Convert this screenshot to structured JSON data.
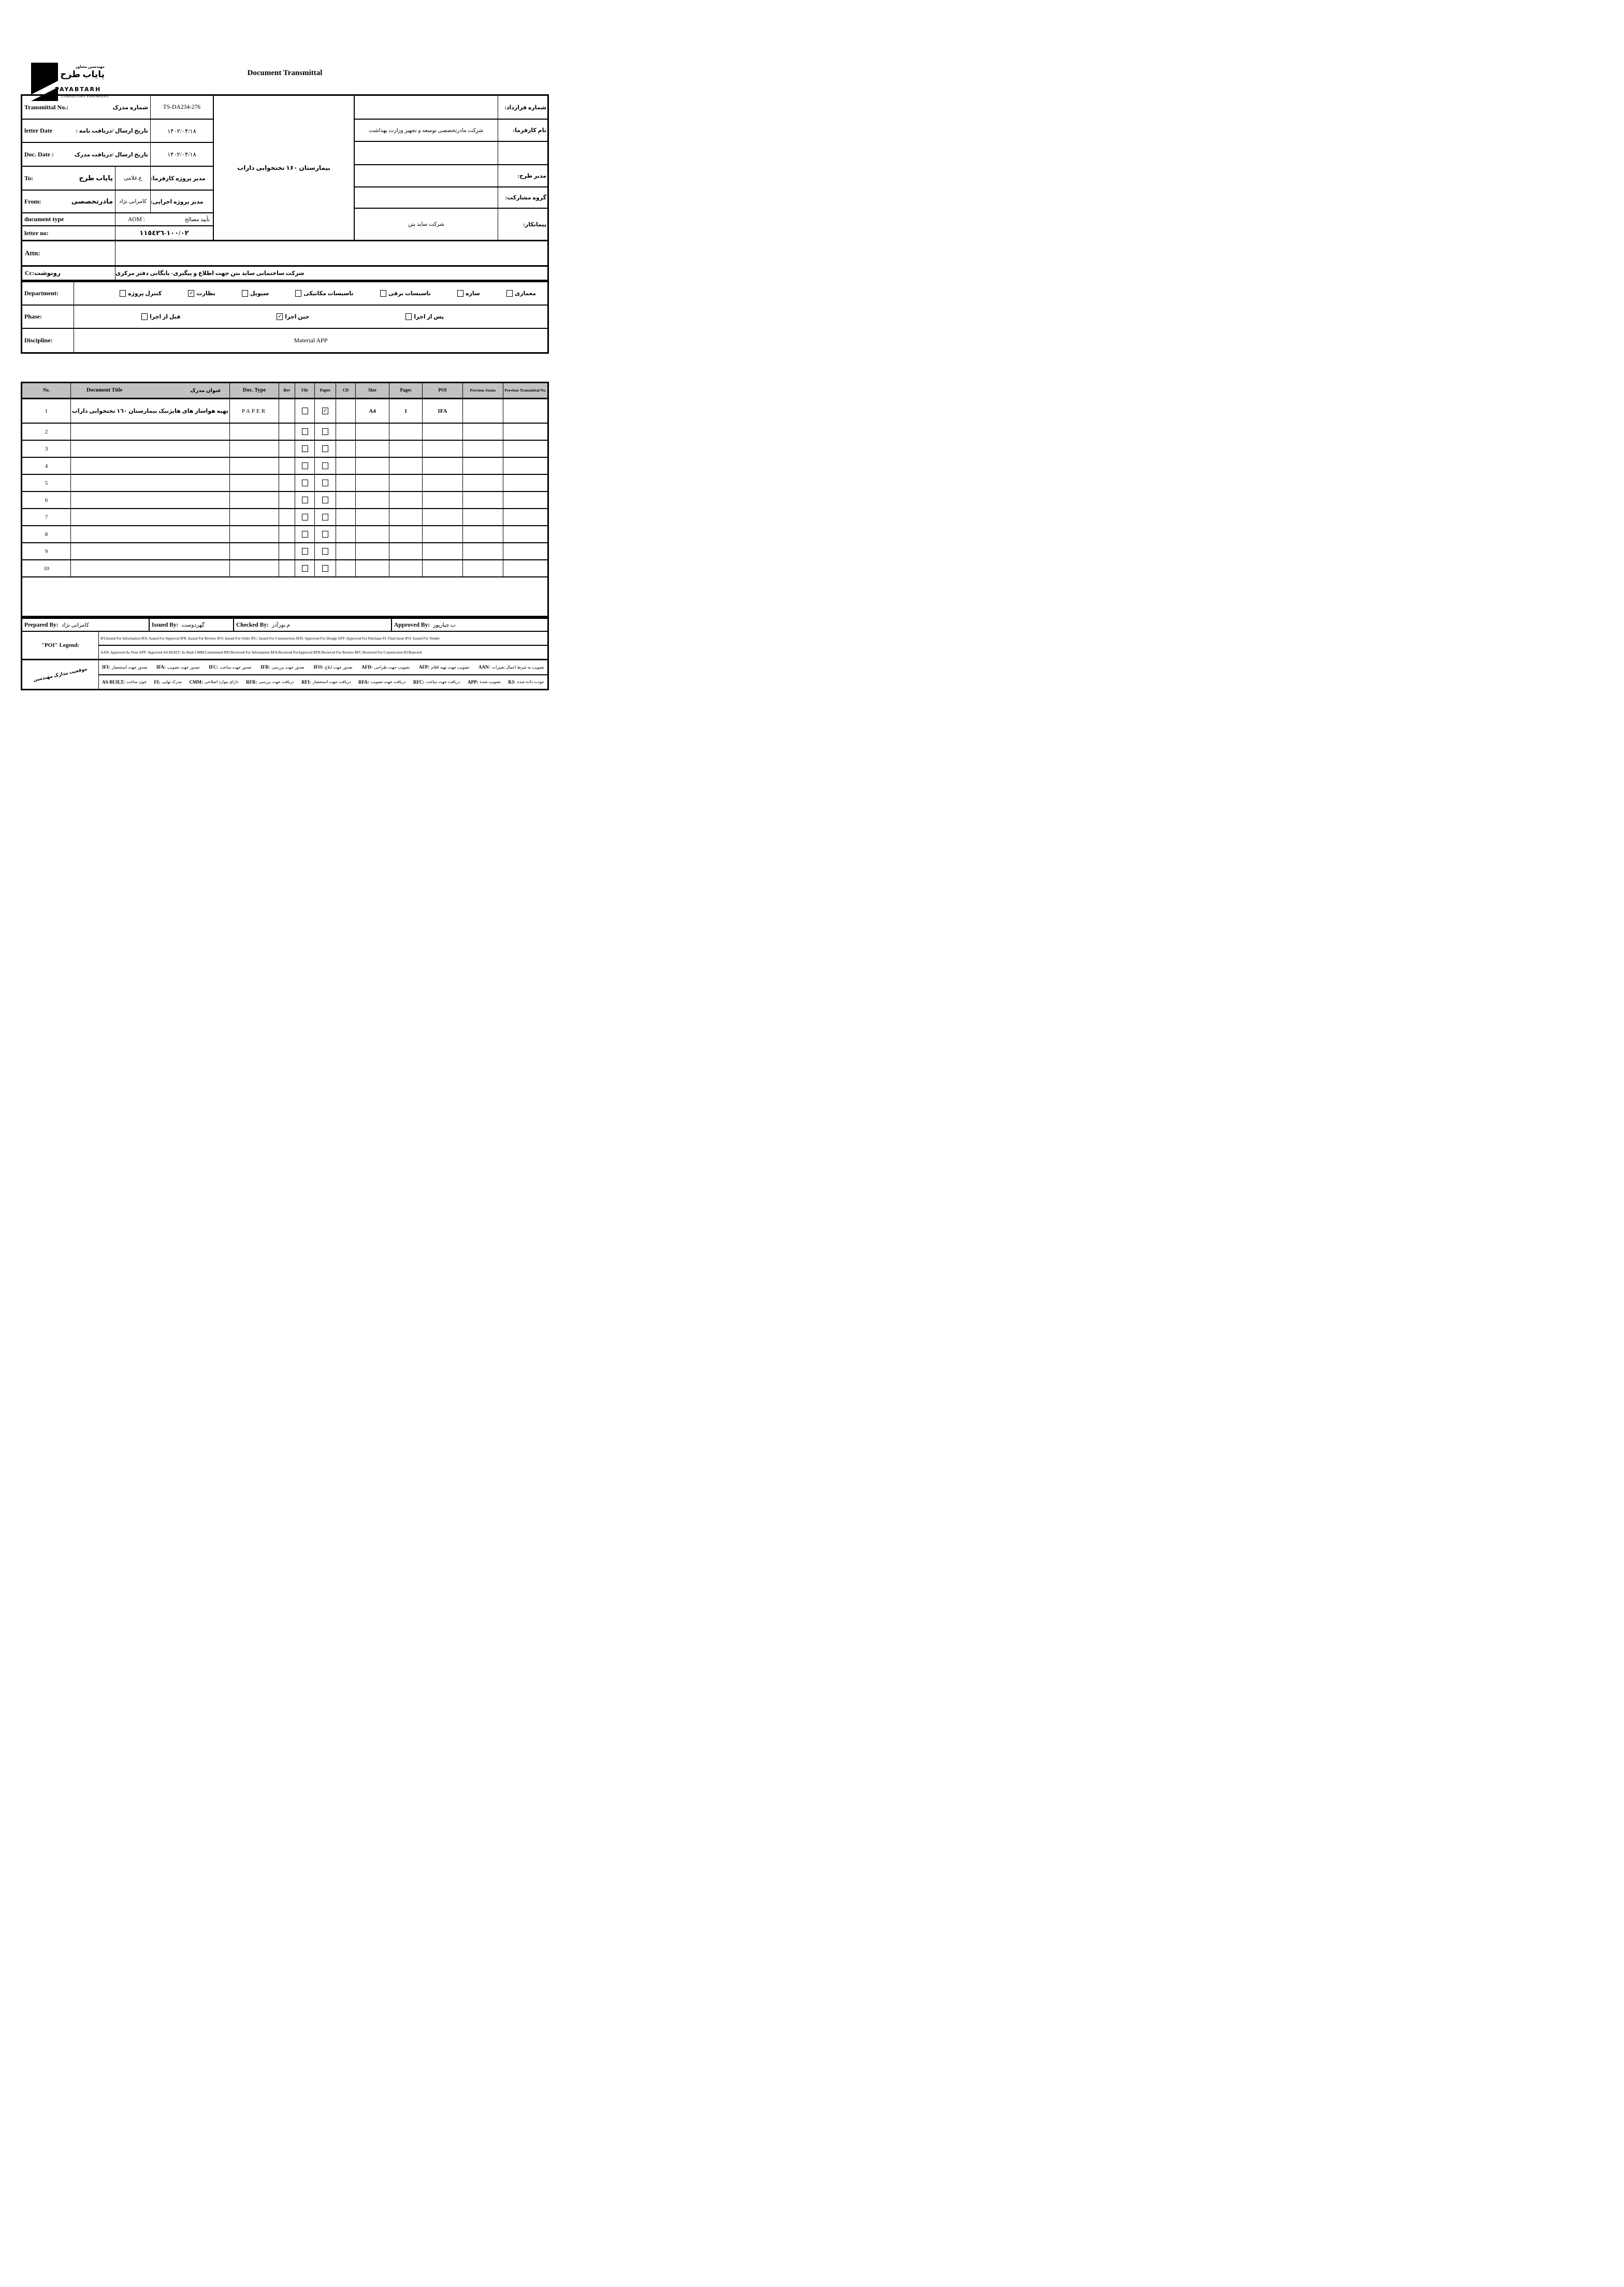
{
  "colors": {
    "table_header_bg": "#c2c2c2",
    "ink": "#000000",
    "paper": "#ffffff"
  },
  "logo": {
    "fa_top": "مهندسین مشاور",
    "fa_name": "پایاب طرح",
    "en_name": "PAYABTARH",
    "en_tagline": "CONSULTING ENGINEERS"
  },
  "page_title": "Document Transmittal",
  "header": {
    "rows": {
      "transmittal": {
        "en": "Transmittal No.:",
        "fa": "شماره مدرک",
        "value": "TS-DA234-276"
      },
      "letter_date": {
        "en": "letter Date",
        "fa": "تاریخ ارسال /دریافت نامه :",
        "value": "۱۴۰۲/۰۴/۱۸"
      },
      "doc_date": {
        "en": "Doc. Date :",
        "fa": "تاریخ ارسال /دریافت مدرک",
        "value": "۱۴۰۲/۰۴/۱۸"
      },
      "to": {
        "en": "To:",
        "value_fa": "پایاب طرح",
        "person": "ع.غلامی",
        "fa_label": "مدیر پروژه کارفرما:"
      },
      "from": {
        "en": "From:",
        "value_fa": "مادرتخصصی",
        "person": "کامرانی نژاد",
        "fa_label": "مدیر پروژه اجرایی:"
      },
      "document_type": {
        "en": "ducument type",
        "value": "AOM  :",
        "fa_label": "تأیید مصالح"
      },
      "letter_no": {
        "en": "letter no:",
        "value": "١٠٠/٠٢-١١٥٤٢٦"
      },
      "attn": {
        "en": "Attn:",
        "value": ""
      },
      "cc": {
        "label": "Cc:رونوشت",
        "value": "شرکت ساختمانی ساید بتن جهت اطلاع و پیگیری- بایگانی دفتر مرکزی"
      }
    },
    "project_cell": "بیمارستان ۱۶۰ تختخوابی داراب",
    "right_rows": [
      {
        "label": "شماره قرارداد:",
        "value": ""
      },
      {
        "label": "نام کارفرما:",
        "value": "شرکت مادرتخصصی توسعه و تجهیز وزارت بهداشت"
      },
      {
        "label": "",
        "value": ""
      },
      {
        "label": "مدیر طرح:",
        "value": ""
      },
      {
        "label": "گروه مشارکت:",
        "value": ""
      },
      {
        "label": "پیمانکار:",
        "value": "شرکت ساید بتن"
      }
    ]
  },
  "department": {
    "label": "Department:",
    "options": [
      {
        "label": "معماری",
        "checked": false
      },
      {
        "label": "سازه",
        "checked": false
      },
      {
        "label": "تاسیسات برقی",
        "checked": false
      },
      {
        "label": "تاسیسات مکانیکی",
        "checked": false
      },
      {
        "label": "سیویل",
        "checked": false
      },
      {
        "label": "نظارت",
        "checked": true
      },
      {
        "label": "کنترل پروژه",
        "checked": false
      }
    ]
  },
  "phase": {
    "label": "Phase:",
    "options": [
      {
        "label": "پس از اجرا",
        "checked": false
      },
      {
        "label": "حین اجرا",
        "checked": true
      },
      {
        "label": "قبل از اجرا",
        "checked": false
      }
    ]
  },
  "discipline": {
    "label": "Discipline:",
    "value": "Material APP"
  },
  "doc_table": {
    "headers": {
      "no": "No.",
      "title_en": "Document Title",
      "title_fa": "عنوان مدرک",
      "doc_type": "Doc. Type",
      "rev": "Rev",
      "file": "File",
      "paper": "Paper",
      "cd": "CD",
      "size": "Size",
      "pages": "Pages",
      "poi": "POI",
      "prev_status": "Previous Status",
      "prev_transmittal": "Previous Transmittal No."
    },
    "rows": [
      {
        "no": "1",
        "title": "تهیه هواساز های هایژنیک بیمارستان ١٦٠ تختخوابی داراب",
        "doc_type": "PAPER",
        "rev": "",
        "file": false,
        "paper": true,
        "cd": "",
        "size": "A4",
        "pages": "1",
        "poi": "IFA",
        "prev_status": "",
        "prev_transmittal": ""
      },
      {
        "no": "2",
        "title": "",
        "doc_type": "",
        "rev": "",
        "file": false,
        "paper": false,
        "cd": "",
        "size": "",
        "pages": "",
        "poi": "",
        "prev_status": "",
        "prev_transmittal": ""
      },
      {
        "no": "3",
        "title": "",
        "doc_type": "",
        "rev": "",
        "file": false,
        "paper": false,
        "cd": "",
        "size": "",
        "pages": "",
        "poi": "",
        "prev_status": "",
        "prev_transmittal": ""
      },
      {
        "no": "4",
        "title": "",
        "doc_type": "",
        "rev": "",
        "file": false,
        "paper": false,
        "cd": "",
        "size": "",
        "pages": "",
        "poi": "",
        "prev_status": "",
        "prev_transmittal": ""
      },
      {
        "no": "5",
        "title": "",
        "doc_type": "",
        "rev": "",
        "file": false,
        "paper": false,
        "cd": "",
        "size": "",
        "pages": "",
        "poi": "",
        "prev_status": "",
        "prev_transmittal": ""
      },
      {
        "no": "6",
        "title": "",
        "doc_type": "",
        "rev": "",
        "file": false,
        "paper": false,
        "cd": "",
        "size": "",
        "pages": "",
        "poi": "",
        "prev_status": "",
        "prev_transmittal": ""
      },
      {
        "no": "7",
        "title": "",
        "doc_type": "",
        "rev": "",
        "file": false,
        "paper": false,
        "cd": "",
        "size": "",
        "pages": "",
        "poi": "",
        "prev_status": "",
        "prev_transmittal": ""
      },
      {
        "no": "8",
        "title": "",
        "doc_type": "",
        "rev": "",
        "file": false,
        "paper": false,
        "cd": "",
        "size": "",
        "pages": "",
        "poi": "",
        "prev_status": "",
        "prev_transmittal": ""
      },
      {
        "no": "9",
        "title": "",
        "doc_type": "",
        "rev": "",
        "file": false,
        "paper": false,
        "cd": "",
        "size": "",
        "pages": "",
        "poi": "",
        "prev_status": "",
        "prev_transmittal": ""
      },
      {
        "no": "10",
        "title": "",
        "doc_type": "",
        "rev": "",
        "file": false,
        "paper": false,
        "cd": "",
        "size": "",
        "pages": "",
        "poi": "",
        "prev_status": "",
        "prev_transmittal": ""
      }
    ]
  },
  "signatures": {
    "prepared": {
      "label": "Prepared By:",
      "name": "کامرانی نژاد"
    },
    "issued": {
      "label": "Issued By:",
      "name": "گهردوست"
    },
    "checked": {
      "label": "Checked By:",
      "name": "م.نورآذر"
    },
    "approved": {
      "label": "Approved By:",
      "name": "ب.جبارپور"
    }
  },
  "poi_legend": {
    "label": "\"POI\" Legend:",
    "line1": "IFI:Issued For Information  IFA: Issued For Approval  IFR: Issued For Review   IFO: Issued For Order  IFC: Issued For Construction AFD: Approved For Design AFP: Approved For Purchase  FI: Final Issue  IFO: Issued For Tender",
    "line2": "AAN: Approved As Note  APP: Approved  AS-BUILT: As Built CMM:Commented  RFI:Recieved For Information   RFA:Recieved ForApproval   RFR:Recieved For Review  RFC:Recieved For Construction  RJ:Rejected"
  },
  "fa_legend": {
    "label": "موقعیت مدارک مهندسی",
    "row1": [
      {
        "code": "IFI:",
        "fa": "صدور جهت استحضار"
      },
      {
        "code": "IFA:",
        "fa": "صدور جهت تصویب"
      },
      {
        "code": "IFC:",
        "fa": "صدور جهت ساخت"
      },
      {
        "code": "IFR:",
        "fa": "صدور جهت بررسی"
      },
      {
        "code": "IFO:",
        "fa": "صدور جهت ابلاغ"
      },
      {
        "code": "AFD:",
        "fa": "تصویب جهت طراحی"
      },
      {
        "code": "AFP:",
        "fa": "تصویب جهت تهیه اقلام"
      },
      {
        "code": "AAN:",
        "fa": "تصویب به شرط اعمال تغییرات"
      }
    ],
    "row2": [
      {
        "code": "AS-BUILT:",
        "fa": "چون ساخت"
      },
      {
        "code": "FI:",
        "fa": "مدرک نهایی"
      },
      {
        "code": "CMM:",
        "fa": "دارای موارد اصلاحی"
      },
      {
        "code": "RFR:",
        "fa": "دریافت جهت بررسی"
      },
      {
        "code": "RFI:",
        "fa": "دریافت جهت استحضار"
      },
      {
        "code": "RFA:",
        "fa": "دریافت جهت تصویب"
      },
      {
        "code": "RFC:",
        "fa": "دریافت جهت ساخت"
      },
      {
        "code": "APP:",
        "fa": "تصویب شده"
      },
      {
        "code": "RJ:",
        "fa": "عودت داده شده"
      }
    ]
  }
}
